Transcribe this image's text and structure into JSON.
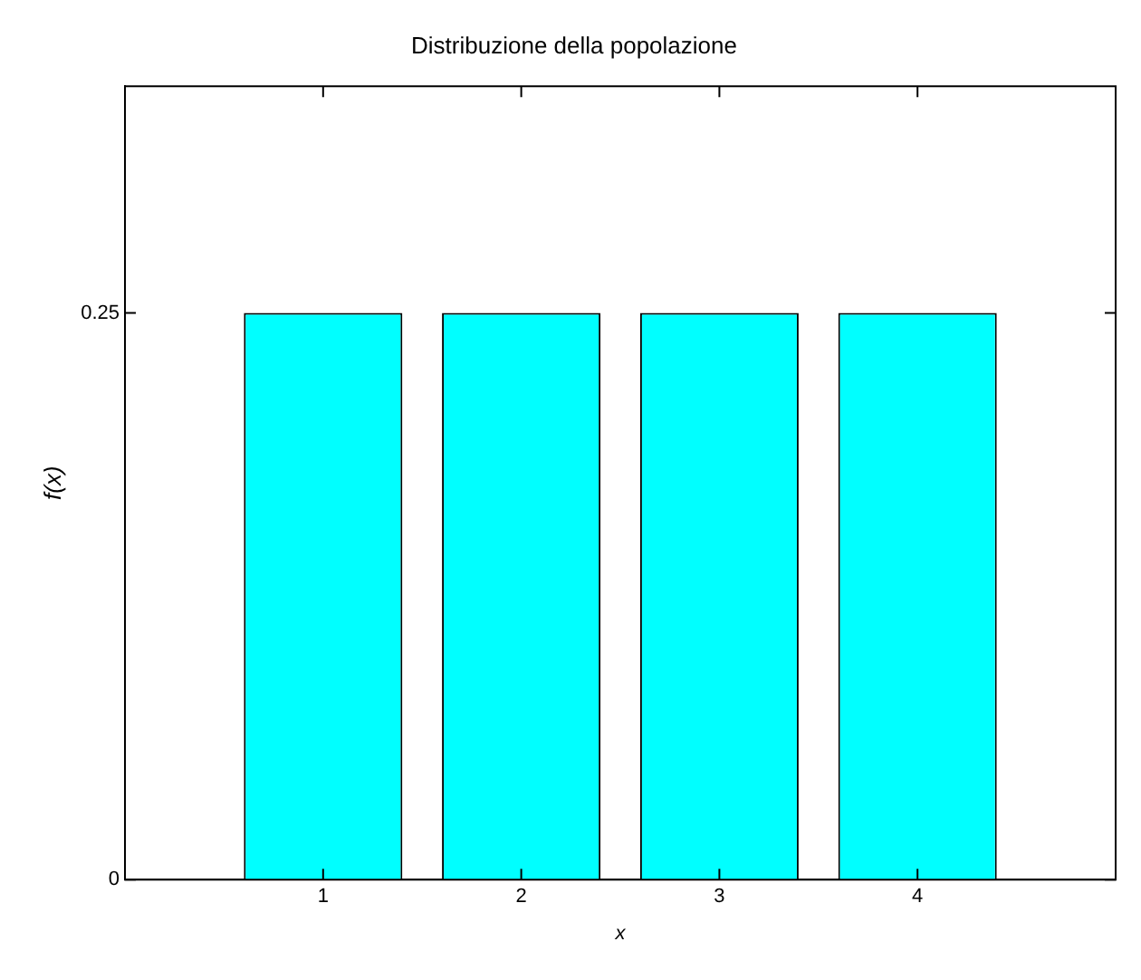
{
  "chart_data": {
    "type": "bar",
    "title": "Distribuzione della popolazione",
    "xlabel": "x",
    "ylabel": "f(x)",
    "x": [
      1,
      2,
      3,
      4
    ],
    "values": [
      0.25,
      0.25,
      0.25,
      0.25
    ],
    "color": "#00ffff",
    "xlim": [
      0,
      5
    ],
    "xticks": [
      1,
      2,
      3,
      4
    ],
    "ylim": [
      0,
      0.35
    ],
    "yticks": [
      0,
      0.25
    ],
    "grid": false,
    "legend": false
  }
}
